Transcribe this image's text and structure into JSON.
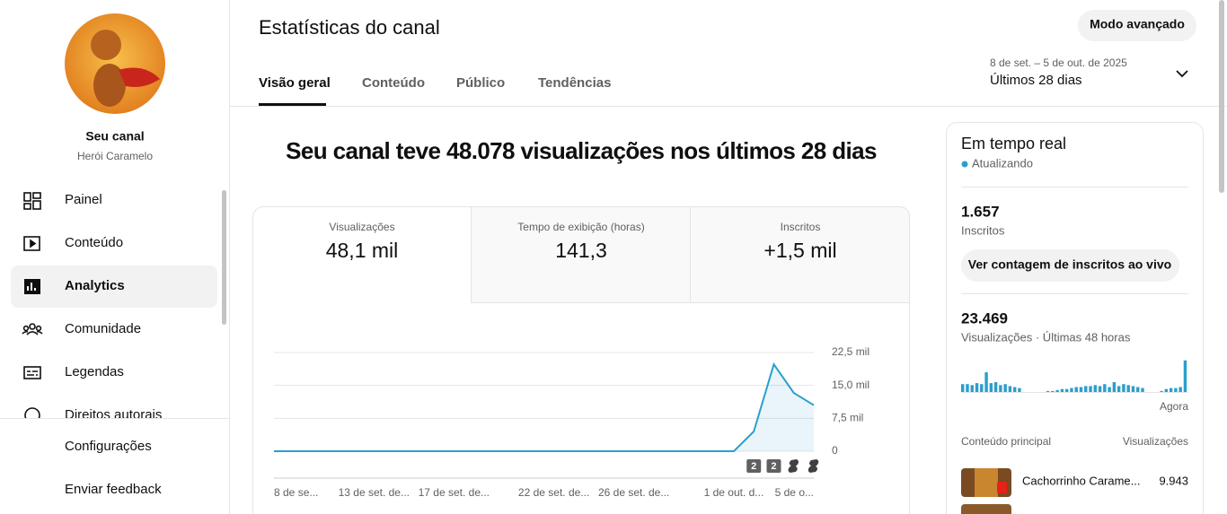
{
  "sidebar": {
    "channel_title": "Seu canal",
    "channel_name": "Herói Caramelo",
    "nav": [
      "Painel",
      "Conteúdo",
      "Analytics",
      "Comunidade",
      "Legendas",
      "Direitos autorais"
    ],
    "footer_nav": [
      "Configurações",
      "Enviar feedback"
    ]
  },
  "header": {
    "title": "Estatísticas do canal",
    "advanced_button": "Modo avançado",
    "tabs": [
      "Visão geral",
      "Conteúdo",
      "Público",
      "Tendências"
    ],
    "date_range": "8 de set. – 5 de out. de 2025",
    "period": "Últimos 28 dias"
  },
  "summary": "Seu canal teve 48.078 visualizações nos últimos 28 dias",
  "metrics": [
    {
      "label": "Visualizações",
      "value": "48,1 mil"
    },
    {
      "label": "Tempo de exibição (horas)",
      "value": "141,3"
    },
    {
      "label": "Inscritos",
      "value": "+1,5 mil"
    }
  ],
  "chart": {
    "type": "line",
    "color": "#2b9fcc",
    "grid": true,
    "categories": [
      "8 de se...",
      null,
      null,
      null,
      null,
      "13 de set. de...",
      null,
      null,
      null,
      "17 de set. de...",
      null,
      null,
      null,
      null,
      "22 de set. de...",
      null,
      null,
      null,
      "26 de set. de...",
      null,
      null,
      null,
      null,
      "1 de out. d...",
      null,
      null,
      null,
      "5 de o..."
    ],
    "values": [
      0,
      0,
      0,
      0,
      0,
      0,
      0,
      0,
      0,
      0,
      0,
      0,
      0,
      0,
      0,
      0,
      0,
      0,
      0,
      0,
      0,
      0,
      0,
      0,
      4500,
      19800,
      13300,
      10500
    ],
    "ylim": [
      0,
      22500
    ],
    "yticks": [
      0,
      {
        "value": 7500,
        "label": "7,5 mil"
      },
      {
        "value": 15000,
        "label": "15,0 mil"
      },
      {
        "value": 22500,
        "label": "22,5 mil"
      }
    ],
    "markers": [
      "2",
      "2"
    ]
  },
  "realtime": {
    "title": "Em tempo real",
    "status": "Atualizando",
    "subscribers": "1.657",
    "subscribers_label": "Inscritos",
    "live_button": "Ver contagem de inscritos ao vivo",
    "views": "23.469",
    "views_label": "Visualizações · Últimas 48 horas",
    "views_chart": [
      8,
      8,
      7,
      9,
      8,
      20,
      9,
      10,
      7,
      8,
      6,
      5,
      4,
      0,
      0,
      0,
      0,
      0,
      1,
      1,
      2,
      3,
      3,
      4,
      5,
      5,
      6,
      6,
      7,
      6,
      8,
      5,
      10,
      6,
      8,
      7,
      6,
      5,
      4,
      0,
      0,
      0,
      1,
      3,
      4,
      4,
      5,
      32
    ],
    "now_label": "Agora",
    "top_content": {
      "header": "Conteúdo principal",
      "column": "Visualizações",
      "rows": [
        {
          "title": "Cachorrinho Carame...",
          "views": "9.943"
        }
      ]
    }
  }
}
